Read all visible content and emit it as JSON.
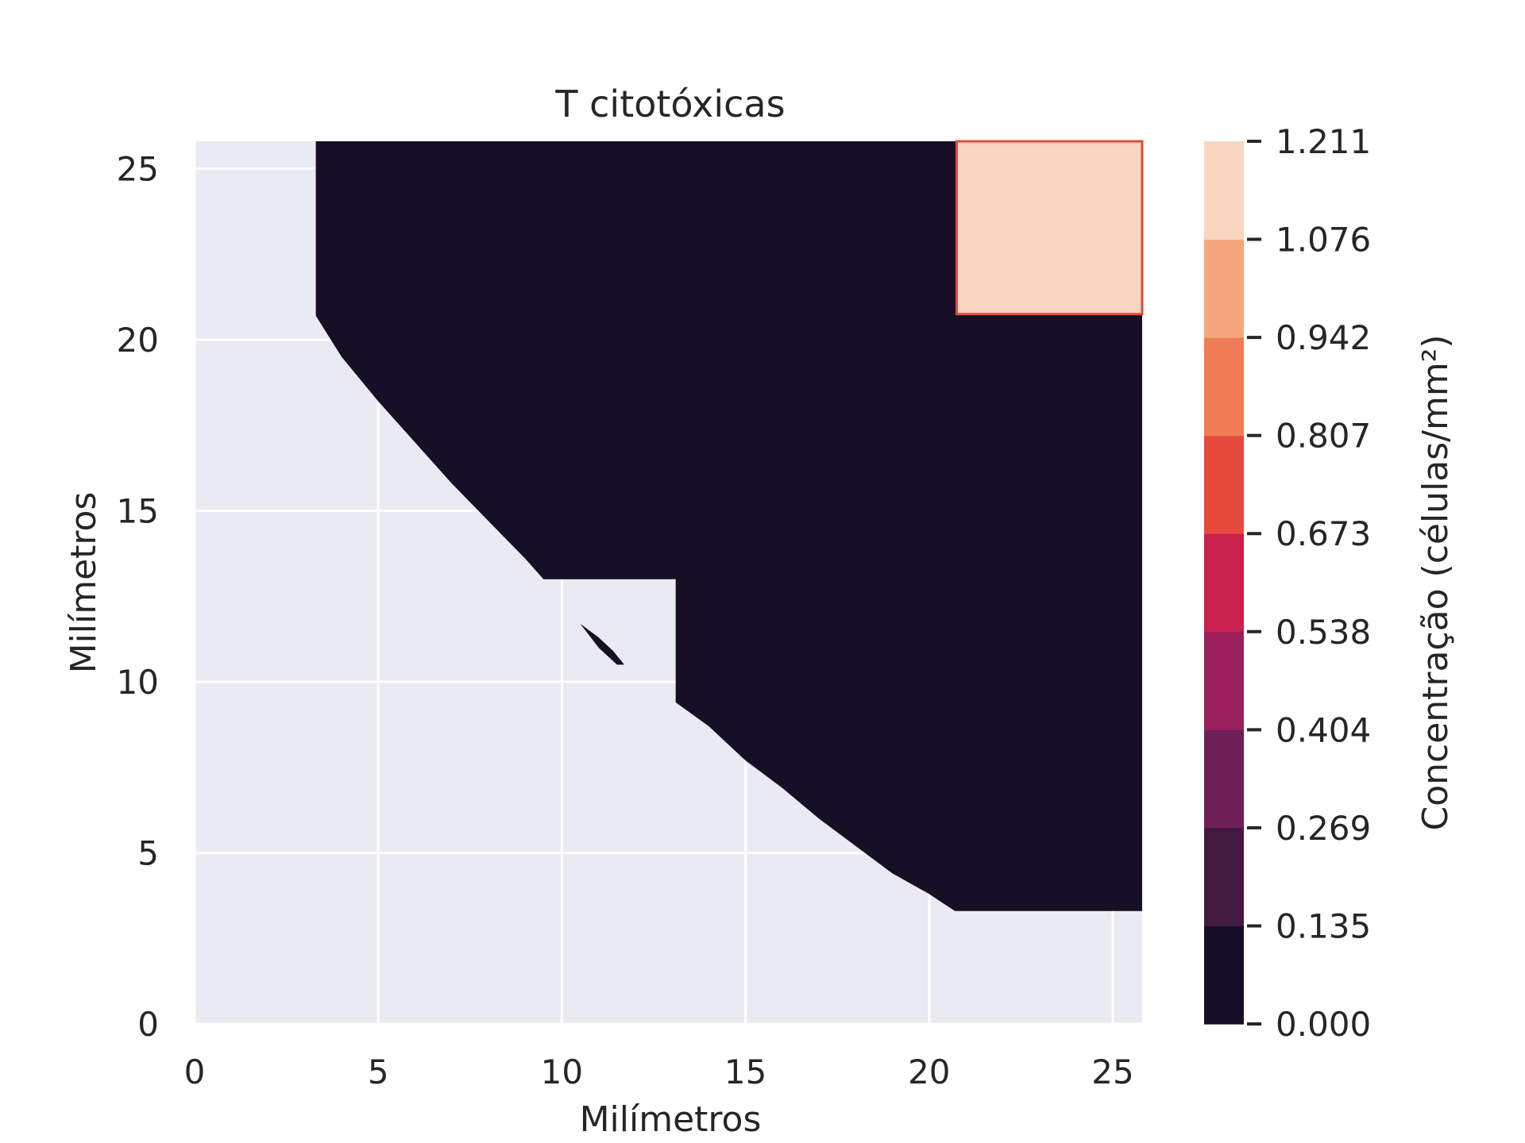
{
  "chart_data": {
    "type": "heatmap",
    "subtype": "filled-contour",
    "title": "T citotóxicas",
    "xlabel": "Milímetros",
    "ylabel": "Milímetros",
    "xlim": [
      0,
      25.8
    ],
    "ylim": [
      0,
      25.8
    ],
    "xticks": [
      0,
      5,
      10,
      15,
      20,
      25
    ],
    "yticks": [
      0,
      5,
      10,
      15,
      20,
      25
    ],
    "grid": true,
    "background_color": "#eaeaf2",
    "colorbar": {
      "label": "Concentração (células/mm²)",
      "levels": [
        "0.000",
        "0.135",
        "0.269",
        "0.404",
        "0.538",
        "0.673",
        "0.807",
        "0.942",
        "1.076",
        "1.211"
      ],
      "colors": [
        "#170f26",
        "#42193f",
        "#6d1f56",
        "#9b1f5a",
        "#c81f4d",
        "#e7493d",
        "#f17c56",
        "#f5a67e",
        "#f7d5be"
      ]
    },
    "regions": [
      {
        "name": "zero-concentration region",
        "level": "0.000-0.135",
        "color": "#170f26",
        "polygon": [
          [
            3.3,
            25.8
          ],
          [
            3.3,
            20.7
          ],
          [
            4.0,
            19.5
          ],
          [
            5.0,
            18.2
          ],
          [
            6.0,
            17.0
          ],
          [
            7.0,
            15.8
          ],
          [
            8.0,
            14.7
          ],
          [
            9.0,
            13.6
          ],
          [
            9.5,
            13.0
          ],
          [
            13.1,
            13.0
          ],
          [
            13.1,
            9.4
          ],
          [
            14.0,
            8.7
          ],
          [
            15.0,
            7.7
          ],
          [
            16.0,
            6.9
          ],
          [
            17.0,
            6.0
          ],
          [
            18.0,
            5.2
          ],
          [
            19.0,
            4.4
          ],
          [
            20.0,
            3.8
          ],
          [
            20.7,
            3.3
          ],
          [
            25.8,
            3.3
          ],
          [
            25.8,
            25.8
          ]
        ]
      },
      {
        "name": "isolated speck",
        "level": "0.000-0.135",
        "color": "#170f26",
        "polygon": [
          [
            10.5,
            11.7
          ],
          [
            11.0,
            11.3
          ],
          [
            11.4,
            10.9
          ],
          [
            11.7,
            10.5
          ],
          [
            11.5,
            10.5
          ],
          [
            11.0,
            11.0
          ]
        ]
      },
      {
        "name": "high-concentration square",
        "level": "1.076-1.211",
        "color": "#f7d5be",
        "edge_color": "#e7493d",
        "polygon": [
          [
            20.75,
            25.8
          ],
          [
            20.75,
            20.75
          ],
          [
            25.8,
            20.75
          ],
          [
            25.8,
            25.8
          ]
        ]
      }
    ]
  }
}
